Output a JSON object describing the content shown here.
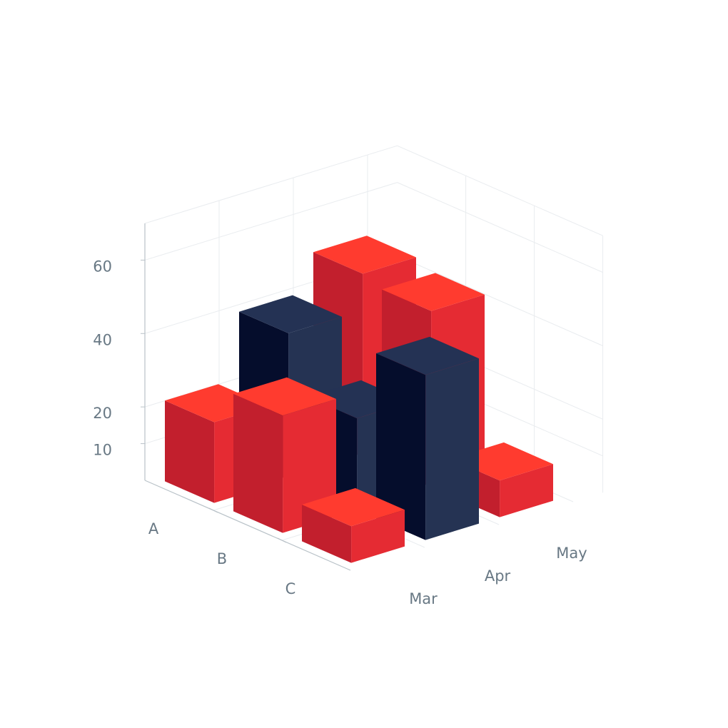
{
  "chart_data": {
    "type": "bar3d",
    "title": "",
    "xlabel": "",
    "ylabel": "",
    "zlabel": "",
    "x_categories": [
      "A",
      "B",
      "C"
    ],
    "y_categories": [
      "Mar",
      "Apr",
      "May"
    ],
    "z_ticks": [
      10,
      20,
      40,
      60
    ],
    "grid": true,
    "bars": [
      {
        "x": "A",
        "y": "Mar",
        "value": 22,
        "color": "red"
      },
      {
        "x": "B",
        "y": "Mar",
        "value": 32,
        "color": "red"
      },
      {
        "x": "C",
        "y": "Mar",
        "value": 10,
        "color": "red"
      },
      {
        "x": "A",
        "y": "Apr",
        "value": 40,
        "color": "navy"
      },
      {
        "x": "B",
        "y": "Apr",
        "value": 25,
        "color": "navy"
      },
      {
        "x": "C",
        "y": "Apr",
        "value": 45,
        "color": "navy"
      },
      {
        "x": "A",
        "y": "May",
        "value": 50,
        "color": "red"
      },
      {
        "x": "B",
        "y": "May",
        "value": 48,
        "color": "red"
      },
      {
        "x": "C",
        "y": "May",
        "value": 10,
        "color": "red"
      }
    ]
  },
  "colors": {
    "red": {
      "top": "#ff3b2f",
      "front": "#e52b33",
      "side": "#c21f2d"
    },
    "navy": {
      "top": "#243254",
      "front": "#253353",
      "side": "#050d2c"
    }
  }
}
